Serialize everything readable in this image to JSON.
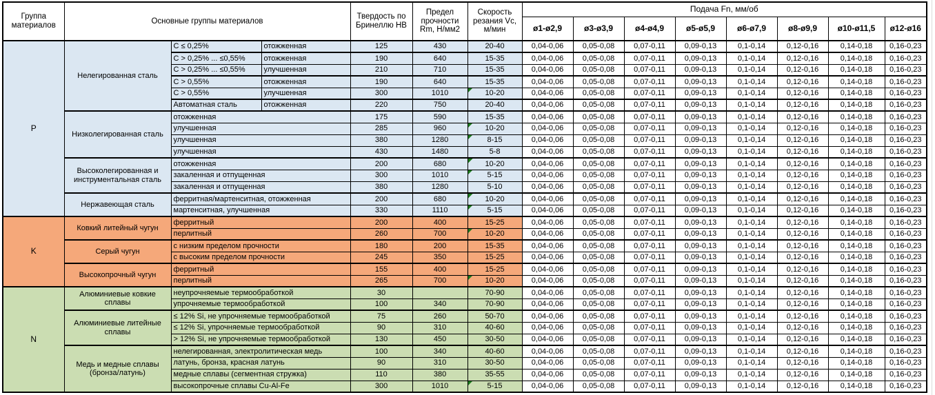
{
  "table": {
    "header": {
      "group": "Группа материалов",
      "main_groups": "Основные группы материалов",
      "hardness": "Твердость по Бринеллю HB",
      "strength": "Предел прочности Rm, Н/мм2",
      "speed": "Скорость резания Vc, м/мин",
      "feed": "Подача Fn, мм/об",
      "diameters": [
        "ø1-ø2,9",
        "ø3-ø3,9",
        "ø4-ø4,9",
        "ø5-ø5,9",
        "ø6-ø7,9",
        "ø8-ø9,9",
        "ø10-ø11,5",
        "ø12-ø16"
      ]
    },
    "feed_values": [
      "0,04-0,06",
      "0,05-0,08",
      "0,07-0,11",
      "0,09-0,13",
      "0,1-0,14",
      "0,12-0,16",
      "0,14-0,18",
      "0,16-0,23"
    ],
    "colors": {
      "group_p_blue": "#dbe7f2",
      "group_k_orange": "#f5a87a",
      "group_n_green": "#cbddb2",
      "marker_triangle_green": "#1e7c1e",
      "border": "#000000"
    },
    "groups": [
      {
        "id": "P",
        "subgroups": [
          {
            "name": "Нелегированная сталь",
            "rows": [
              {
                "spec": [
                  "C ≤ 0,25%",
                  "отожженная"
                ],
                "hb": "125",
                "rm": "430",
                "vc": "20-40",
                "marker": false,
                "thick": false
              },
              {
                "spec": [
                  "C > 0,25% ... ≤0,55%",
                  "отожженная"
                ],
                "hb": "190",
                "rm": "640",
                "vc": "15-35",
                "marker": false,
                "thick": true
              },
              {
                "spec": [
                  "C > 0,25% ... ≤0,55%",
                  "улучшенная"
                ],
                "hb": "210",
                "rm": "710",
                "vc": "15-35",
                "marker": false,
                "thick": false
              },
              {
                "spec": [
                  "C > 0,55%",
                  "отожженная"
                ],
                "hb": "190",
                "rm": "640",
                "vc": "15-35",
                "marker": false,
                "thick": true
              },
              {
                "spec": [
                  "C > 0,55%",
                  "улучшенная"
                ],
                "hb": "300",
                "rm": "1010",
                "vc": "10-20",
                "marker": true,
                "thick": false
              },
              {
                "spec": [
                  "Автоматная сталь",
                  "отожженная"
                ],
                "hb": "220",
                "rm": "750",
                "vc": "20-40",
                "marker": false,
                "thick": true
              }
            ]
          },
          {
            "name": "Низколегированная сталь",
            "rows": [
              {
                "spec": [
                  "отожженная"
                ],
                "hb": "175",
                "rm": "590",
                "vc": "15-35",
                "marker": false,
                "thick": true
              },
              {
                "spec": [
                  "улучшенная"
                ],
                "hb": "285",
                "rm": "960",
                "vc": "10-20",
                "marker": true,
                "thick": false
              },
              {
                "spec": [
                  "улучшенная"
                ],
                "hb": "380",
                "rm": "1280",
                "vc": "8-15",
                "marker": true,
                "thick": false
              },
              {
                "spec": [
                  "улучшенная"
                ],
                "hb": "430",
                "rm": "1480",
                "vc": "5-8",
                "marker": false,
                "thick": false
              }
            ]
          },
          {
            "name": "Высоколегированная и инструментальная сталь",
            "rows": [
              {
                "spec": [
                  "отожженная"
                ],
                "hb": "200",
                "rm": "680",
                "vc": "10-20",
                "marker": true,
                "thick": true
              },
              {
                "spec": [
                  "закаленная и отпущенная"
                ],
                "hb": "300",
                "rm": "1010",
                "vc": "5-15",
                "marker": true,
                "thick": false
              },
              {
                "spec": [
                  "закаленная и отпущенная"
                ],
                "hb": "380",
                "rm": "1280",
                "vc": "5-10",
                "marker": false,
                "thick": false
              }
            ]
          },
          {
            "name": "Нержавеющая сталь",
            "rows": [
              {
                "spec": [
                  "ферритная/мартенситная, отожженная"
                ],
                "hb": "200",
                "rm": "680",
                "vc": "10-20",
                "marker": true,
                "thick": true
              },
              {
                "spec": [
                  "мартенситная, улучшенная"
                ],
                "hb": "330",
                "rm": "1110",
                "vc": "5-15",
                "marker": true,
                "thick": false
              }
            ]
          }
        ]
      },
      {
        "id": "K",
        "subgroups": [
          {
            "name": "Ковкий литейный чугун",
            "rows": [
              {
                "spec": [
                  "ферритный"
                ],
                "hb": "200",
                "rm": "400",
                "vc": "15-25",
                "marker": false,
                "thick": true
              },
              {
                "spec": [
                  "перлитный"
                ],
                "hb": "260",
                "rm": "700",
                "vc": "10-20",
                "marker": true,
                "thick": false
              }
            ]
          },
          {
            "name": "Серый чугун",
            "rows": [
              {
                "spec": [
                  "с низким пределом прочности"
                ],
                "hb": "180",
                "rm": "200",
                "vc": "15-35",
                "marker": false,
                "thick": true
              },
              {
                "spec": [
                  "с высоким пределом прочности"
                ],
                "hb": "245",
                "rm": "350",
                "vc": "15-25",
                "marker": false,
                "thick": false
              }
            ]
          },
          {
            "name": "Высокопрочный чугун",
            "rows": [
              {
                "spec": [
                  "ферритный"
                ],
                "hb": "155",
                "rm": "400",
                "vc": "15-25",
                "marker": false,
                "thick": true
              },
              {
                "spec": [
                  "перлитный"
                ],
                "hb": "265",
                "rm": "700",
                "vc": "10-20",
                "marker": true,
                "thick": false
              }
            ]
          }
        ]
      },
      {
        "id": "N",
        "subgroups": [
          {
            "name": "Алюминиевые ковкие сплавы",
            "rows": [
              {
                "spec": [
                  "неупрочняемые термообработкой"
                ],
                "hb": "30",
                "rm": "",
                "vc": "70-90",
                "marker": false,
                "thick": true
              },
              {
                "spec": [
                  "упрочняемые термообработкой"
                ],
                "hb": "100",
                "rm": "340",
                "vc": "70-90",
                "marker": false,
                "thick": false
              }
            ]
          },
          {
            "name": "Алюминиевые литейные сплавы",
            "rows": [
              {
                "spec": [
                  "≤ 12% Si, не упрочняемые термообработкой"
                ],
                "hb": "75",
                "rm": "260",
                "vc": "50-70",
                "marker": false,
                "thick": true
              },
              {
                "spec": [
                  "≤ 12% Si, упрочняемые термообработкой"
                ],
                "hb": "90",
                "rm": "310",
                "vc": "40-60",
                "marker": false,
                "thick": false
              },
              {
                "spec": [
                  "> 12% Si, не упрочняемые термообработкой"
                ],
                "hb": "130",
                "rm": "450",
                "vc": "30-50",
                "marker": false,
                "thick": false
              }
            ]
          },
          {
            "name": "Медь и медные сплавы (бронза/латунь)",
            "rows": [
              {
                "spec": [
                  "нелегированная, электролитическая медь"
                ],
                "hb": "100",
                "rm": "340",
                "vc": "40-60",
                "marker": false,
                "thick": true
              },
              {
                "spec": [
                  "латунь, бронза, красная латунь"
                ],
                "hb": "90",
                "rm": "310",
                "vc": "30-50",
                "marker": false,
                "thick": false
              },
              {
                "spec": [
                  "медные сплавы (сегментная стружка)"
                ],
                "hb": "110",
                "rm": "380",
                "vc": "35-55",
                "marker": false,
                "thick": false
              },
              {
                "spec": [
                  "высокопрочные сплавы Cu-Al-Fe"
                ],
                "hb": "300",
                "rm": "1010",
                "vc": "5-15",
                "marker": true,
                "thick": false
              }
            ]
          }
        ]
      }
    ]
  }
}
